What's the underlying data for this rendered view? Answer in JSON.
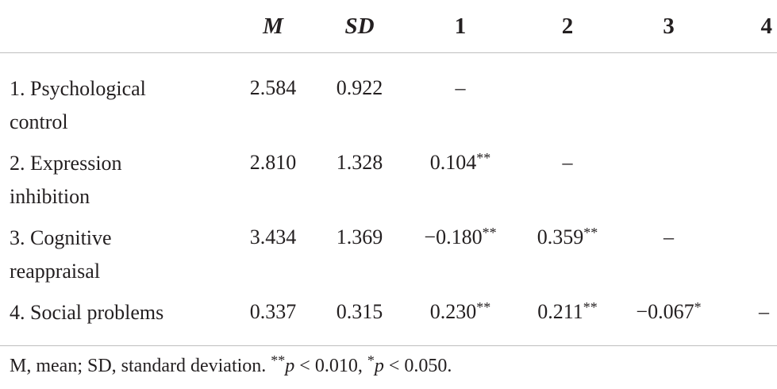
{
  "table": {
    "headers": [
      "",
      "M",
      "SD",
      "1",
      "2",
      "3",
      "4"
    ],
    "rows": [
      {
        "label_line1": "1. Psychological",
        "label_line2": "control",
        "m": "2.584",
        "sd": "0.922",
        "c1": "–",
        "c1_sig": "",
        "c2": "",
        "c2_sig": "",
        "c3": "",
        "c3_sig": "",
        "c4": ""
      },
      {
        "label_line1": "2. Expression",
        "label_line2": "inhibition",
        "m": "2.810",
        "sd": "1.328",
        "c1": "0.104",
        "c1_sig": "**",
        "c2": "–",
        "c2_sig": "",
        "c3": "",
        "c3_sig": "",
        "c4": ""
      },
      {
        "label_line1": "3. Cognitive",
        "label_line2": "reappraisal",
        "m": "3.434",
        "sd": "1.369",
        "c1": "−0.180",
        "c1_sig": "**",
        "c2": "0.359",
        "c2_sig": "**",
        "c3": "–",
        "c3_sig": "",
        "c4": ""
      },
      {
        "label_line1": "4. Social problems",
        "label_line2": "",
        "m": "0.337",
        "sd": "0.315",
        "c1": "0.230",
        "c1_sig": "**",
        "c2": "0.211",
        "c2_sig": "**",
        "c3": "−0.067",
        "c3_sig": "*",
        "c4": "–"
      }
    ]
  },
  "footnote": {
    "text": "M, mean; SD, standard deviation. ",
    "stars_a": "**",
    "p_a": "p",
    "cond_a": " < 0.010, ",
    "stars_b": "*",
    "p_b": "p",
    "cond_b": " < 0.050."
  }
}
